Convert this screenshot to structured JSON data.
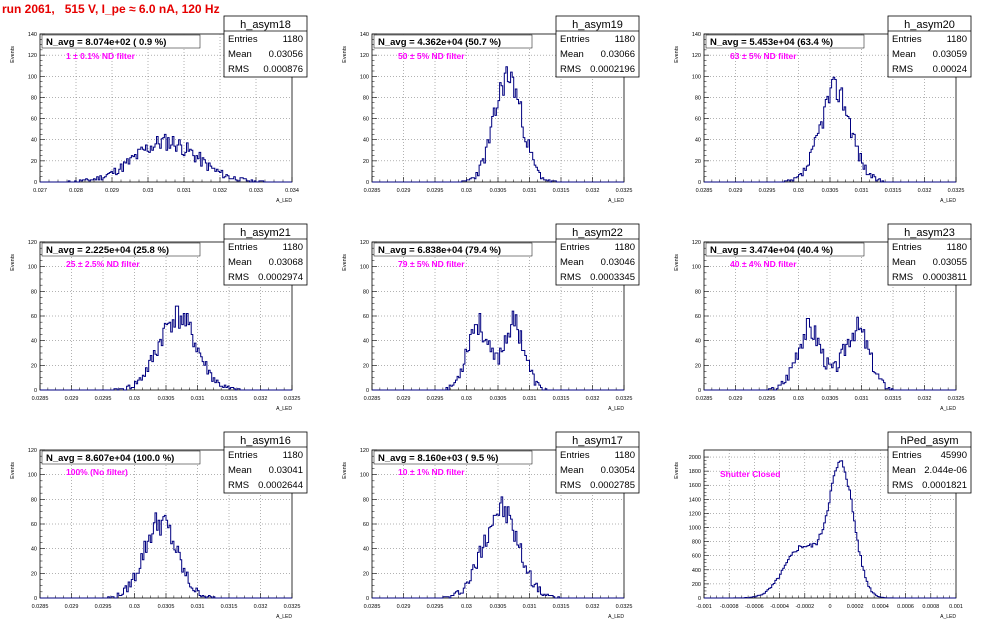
{
  "header": {
    "title": "run 2061,   515 V, I_pe ≈ 6.0 nA, 120 Hz"
  },
  "stats_labels": {
    "entries": "Entries",
    "mean": "Mean",
    "rms": "RMS"
  },
  "axis": {
    "ylabel": "Events",
    "xlabel": "A_LED"
  },
  "colors": {
    "hist": "#000080",
    "title": "#e60000",
    "annotation": "#ff00ff"
  },
  "chart_data": [
    {
      "type": "histogram",
      "name": "h_asym18",
      "navg": "N_avg = 8.074e+02 ( 0.9 %)",
      "annotation": "1 ± 0.1% ND filter",
      "stats": {
        "entries": "1180",
        "mean": "0.03056",
        "rms": "0.000876"
      },
      "xlim": [
        0.027,
        0.034
      ],
      "xticks": [
        "0.027",
        "0.028",
        "0.029",
        "0.03",
        "0.031",
        "0.032",
        "0.033",
        "0.034"
      ],
      "ylim": [
        0,
        140
      ],
      "yticks": [
        "0",
        "20",
        "40",
        "60",
        "80",
        "100",
        "120",
        "140"
      ],
      "gaussians": [
        {
          "mu": 0.0305,
          "sigma": 0.00087,
          "peak": 38
        }
      ],
      "seed": 11
    },
    {
      "type": "histogram",
      "name": "h_asym19",
      "navg": "N_avg = 4.362e+04 (50.7 %)",
      "annotation": "50 ± 5% ND filter",
      "stats": {
        "entries": "1180",
        "mean": "0.03066",
        "rms": "0.0002196"
      },
      "xlim": [
        0.0285,
        0.0325
      ],
      "xticks": [
        "0.0285",
        "0.029",
        "0.0295",
        "0.03",
        "0.0305",
        "0.031",
        "0.0315",
        "0.032",
        "0.0325"
      ],
      "ylim": [
        0,
        140
      ],
      "yticks": [
        "0",
        "20",
        "40",
        "60",
        "80",
        "100",
        "120",
        "140"
      ],
      "gaussians": [
        {
          "mu": 0.03066,
          "sigma": 0.00022,
          "peak": 100
        }
      ],
      "seed": 23
    },
    {
      "type": "histogram",
      "name": "h_asym20",
      "navg": "N_avg = 5.453e+04 (63.4 %)",
      "annotation": "63 ± 5% ND filter",
      "stats": {
        "entries": "1180",
        "mean": "0.03059",
        "rms": "0.00024"
      },
      "xlim": [
        0.0285,
        0.0325
      ],
      "xticks": [
        "0.0285",
        "0.029",
        "0.0295",
        "0.03",
        "0.0305",
        "0.031",
        "0.0315",
        "0.032",
        "0.0325"
      ],
      "ylim": [
        0,
        140
      ],
      "yticks": [
        "0",
        "20",
        "40",
        "60",
        "80",
        "100",
        "120",
        "140"
      ],
      "gaussians": [
        {
          "mu": 0.03059,
          "sigma": 0.00024,
          "peak": 88
        }
      ],
      "seed": 37
    },
    {
      "type": "histogram",
      "name": "h_asym21",
      "navg": "N_avg = 2.225e+04 (25.8 %)",
      "annotation": "25 ± 2.5% ND filter",
      "stats": {
        "entries": "1180",
        "mean": "0.03068",
        "rms": "0.0002974"
      },
      "xlim": [
        0.0285,
        0.0325
      ],
      "xticks": [
        "0.0285",
        "0.029",
        "0.0295",
        "0.03",
        "0.0305",
        "0.031",
        "0.0315",
        "0.032",
        "0.0325"
      ],
      "ylim": [
        0,
        120
      ],
      "yticks": [
        "0",
        "20",
        "40",
        "60",
        "80",
        "100",
        "120"
      ],
      "gaussians": [
        {
          "mu": 0.03068,
          "sigma": 0.0003,
          "peak": 60
        }
      ],
      "seed": 41
    },
    {
      "type": "histogram",
      "name": "h_asym22",
      "navg": "N_avg = 6.838e+04 (79.4 %)",
      "annotation": "79 ± 5% ND filter",
      "stats": {
        "entries": "1180",
        "mean": "0.03046",
        "rms": "0.0003345"
      },
      "xlim": [
        0.0285,
        0.0325
      ],
      "xticks": [
        "0.0285",
        "0.029",
        "0.0295",
        "0.03",
        "0.0305",
        "0.031",
        "0.0315",
        "0.032",
        "0.0325"
      ],
      "ylim": [
        0,
        120
      ],
      "yticks": [
        "0",
        "20",
        "40",
        "60",
        "80",
        "100",
        "120"
      ],
      "gaussians": [
        {
          "mu": 0.03017,
          "sigma": 0.00017,
          "peak": 54
        },
        {
          "mu": 0.03075,
          "sigma": 0.00017,
          "peak": 54
        }
      ],
      "seed": 53
    },
    {
      "type": "histogram",
      "name": "h_asym23",
      "navg": "N_avg = 3.474e+04 (40.4 %)",
      "annotation": "40 ± 4% ND filter",
      "stats": {
        "entries": "1180",
        "mean": "0.03055",
        "rms": "0.0003811"
      },
      "xlim": [
        0.0285,
        0.0325
      ],
      "xticks": [
        "0.0285",
        "0.029",
        "0.0295",
        "0.03",
        "0.0305",
        "0.031",
        "0.0315",
        "0.032",
        "0.0325"
      ],
      "ylim": [
        0,
        120
      ],
      "yticks": [
        "0",
        "20",
        "40",
        "60",
        "80",
        "100",
        "120"
      ],
      "gaussians": [
        {
          "mu": 0.03017,
          "sigma": 0.0002,
          "peak": 50
        },
        {
          "mu": 0.03092,
          "sigma": 0.0002,
          "peak": 50
        }
      ],
      "seed": 67
    },
    {
      "type": "histogram",
      "name": "h_asym16",
      "navg": "N_avg = 8.607e+04 (100.0 %)",
      "annotation": "100% (No filter)",
      "stats": {
        "entries": "1180",
        "mean": "0.03041",
        "rms": "0.0002644"
      },
      "xlim": [
        0.0285,
        0.0325
      ],
      "xticks": [
        "0.0285",
        "0.029",
        "0.0295",
        "0.03",
        "0.0305",
        "0.031",
        "0.0315",
        "0.032",
        "0.0325"
      ],
      "ylim": [
        0,
        120
      ],
      "yticks": [
        "0",
        "20",
        "40",
        "60",
        "80",
        "100",
        "120"
      ],
      "gaussians": [
        {
          "mu": 0.03041,
          "sigma": 0.00026,
          "peak": 62
        }
      ],
      "seed": 79
    },
    {
      "type": "histogram",
      "name": "h_asym17",
      "navg": "N_avg = 8.160e+03 ( 9.5 %)",
      "annotation": "10 ± 1% ND filter",
      "stats": {
        "entries": "1180",
        "mean": "0.03054",
        "rms": "0.0002785"
      },
      "xlim": [
        0.0285,
        0.0325
      ],
      "xticks": [
        "0.0285",
        "0.029",
        "0.0295",
        "0.03",
        "0.0305",
        "0.031",
        "0.0315",
        "0.032",
        "0.0325"
      ],
      "ylim": [
        0,
        120
      ],
      "yticks": [
        "0",
        "20",
        "40",
        "60",
        "80",
        "100",
        "120"
      ],
      "gaussians": [
        {
          "mu": 0.03054,
          "sigma": 0.00028,
          "peak": 72
        }
      ],
      "seed": 97
    },
    {
      "type": "histogram",
      "name": "hPed_asym",
      "navg": "",
      "annotation": "Shutter Closed",
      "stats": {
        "entries": "45990",
        "mean": "2.044e-06",
        "rms": "0.0001821"
      },
      "xlim": [
        -0.001,
        0.001
      ],
      "xticks": [
        "-0.001",
        "-0.0008",
        "-0.0006",
        "-0.0004",
        "-0.0002",
        "0",
        "0.0002",
        "0.0004",
        "0.0006",
        "0.0008",
        "0.001"
      ],
      "ylim": [
        0,
        2100
      ],
      "yticks": [
        "0",
        "200",
        "400",
        "600",
        "800",
        "1000",
        "1200",
        "1400",
        "1600",
        "1800",
        "2000"
      ],
      "gaussians": [
        {
          "mu": -0.00022,
          "sigma": 0.00014,
          "peak": 720
        },
        {
          "mu": 9e-05,
          "sigma": 0.0001,
          "peak": 1850
        }
      ],
      "seed": 5
    }
  ]
}
